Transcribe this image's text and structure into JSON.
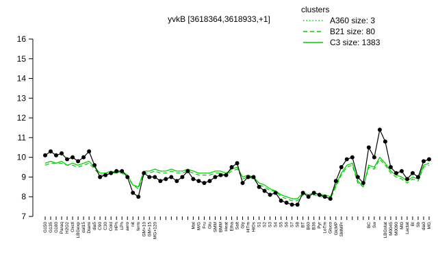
{
  "chart_data": {
    "type": "line",
    "title": "yvkB [3618364,3618933,+1]",
    "legend_title": "clusters",
    "legend_position": "top-right",
    "categories": [
      "G150",
      "G135",
      "G180",
      "Paraq",
      "H2O2",
      "Oxctl",
      "LBGexp",
      "dal15",
      "Diami",
      "dia5",
      "C90",
      "C30",
      "Cold",
      "HPh",
      "LPh",
      "aero",
      "nit",
      "ferm",
      "GM+10",
      "GM+15",
      "MG+120",
      null,
      null,
      null,
      null,
      null,
      null,
      "Mal",
      "M/G",
      "Fru",
      "Glu",
      "SMM",
      "BMM",
      "Heat",
      "Etha",
      "Salt",
      "Gly",
      "HiTm",
      "HiOs",
      "S1",
      "S2",
      "S3",
      "S4",
      "S5",
      "S6",
      "S7",
      "S8",
      "BT",
      "B60",
      "B36",
      "Pyr",
      "LoTm",
      "Gluco",
      "GlcMP",
      "SMMPr",
      null,
      null,
      null,
      null,
      "BC",
      "Sw",
      null,
      "LBGstat",
      "M0045",
      "M0090",
      "Mt0",
      "Lactat",
      "BI",
      "Sb",
      "dia0",
      "MG"
    ],
    "ylim": [
      7,
      16
    ],
    "yticks": [
      7,
      8,
      9,
      10,
      11,
      12,
      13,
      14,
      15,
      16
    ],
    "series": [
      {
        "name": "A360 size: 3",
        "color": "#00cc00",
        "dash": "dotted",
        "values": [
          9.7,
          9.8,
          9.7,
          9.8,
          9.6,
          9.7,
          9.6,
          9.7,
          9.8,
          9.5,
          9.2,
          9.2,
          9.3,
          9.2,
          9.3,
          9.1,
          8.6,
          8.5,
          9.3,
          9.3,
          9.4,
          9.3,
          9.3,
          9.4,
          9.3,
          9.3,
          9.4,
          9.3,
          9.2,
          9.2,
          9.2,
          9.3,
          9.3,
          9.2,
          9.4,
          9.5,
          9.0,
          9.1,
          9.0,
          8.7,
          8.6,
          8.4,
          8.3,
          8.1,
          8.0,
          7.9,
          7.9,
          8.2,
          8.1,
          8.2,
          8.1,
          8.1,
          8.0,
          8.6,
          9.2,
          9.6,
          9.7,
          8.8,
          8.5,
          9.6,
          9.5,
          10.0,
          9.7,
          9.3,
          9.1,
          9.0,
          8.8,
          9.0,
          8.9,
          9.6,
          9.7
        ]
      },
      {
        "name": "B21 size: 80",
        "color": "#00cc00",
        "dash": "dashed",
        "values": [
          9.6,
          9.7,
          9.7,
          9.7,
          9.6,
          9.6,
          9.5,
          9.6,
          9.7,
          9.4,
          9.1,
          9.1,
          9.2,
          9.2,
          9.2,
          9.0,
          8.6,
          8.4,
          9.2,
          9.2,
          9.3,
          9.2,
          9.2,
          9.3,
          9.2,
          9.2,
          9.3,
          9.2,
          9.1,
          9.1,
          9.1,
          9.2,
          9.2,
          9.1,
          9.3,
          9.4,
          8.9,
          9.0,
          8.9,
          8.6,
          8.5,
          8.3,
          8.3,
          8.0,
          7.9,
          7.8,
          7.8,
          8.1,
          8.0,
          8.1,
          8.0,
          8.0,
          7.9,
          8.5,
          9.1,
          9.5,
          9.6,
          8.7,
          8.5,
          9.5,
          9.4,
          9.9,
          9.6,
          9.2,
          9.0,
          8.9,
          8.7,
          8.9,
          8.8,
          9.5,
          9.6
        ]
      },
      {
        "name": "C3 size: 1383",
        "color": "#00cc00",
        "dash": "solid",
        "values": [
          9.7,
          9.8,
          9.7,
          9.8,
          9.6,
          9.7,
          9.6,
          9.7,
          9.8,
          9.5,
          9.2,
          9.2,
          9.3,
          9.2,
          9.3,
          9.1,
          8.6,
          8.5,
          9.3,
          9.3,
          9.4,
          9.3,
          9.3,
          9.4,
          9.3,
          9.3,
          9.4,
          9.3,
          9.2,
          9.2,
          9.2,
          9.3,
          9.3,
          9.2,
          9.4,
          9.5,
          9.0,
          9.1,
          9.0,
          8.7,
          8.6,
          8.4,
          8.3,
          8.1,
          8.0,
          7.9,
          7.9,
          8.2,
          8.1,
          8.2,
          8.1,
          8.1,
          8.0,
          8.6,
          9.2,
          9.6,
          9.7,
          8.8,
          8.5,
          9.6,
          9.5,
          10.0,
          9.7,
          9.3,
          9.1,
          9.0,
          8.8,
          9.0,
          8.9,
          9.6,
          9.7
        ]
      },
      {
        "color": "#000000",
        "dash": "solid",
        "markers": true,
        "values": [
          10.1,
          10.3,
          10.1,
          10.2,
          9.9,
          10.0,
          9.8,
          10.0,
          10.3,
          9.6,
          9.0,
          9.1,
          9.2,
          9.3,
          9.3,
          9.0,
          8.2,
          8.0,
          9.2,
          9.0,
          9.0,
          8.8,
          8.9,
          9.0,
          8.8,
          9.0,
          9.3,
          8.9,
          8.8,
          8.7,
          8.8,
          9.0,
          9.1,
          9.1,
          9.5,
          9.7,
          8.7,
          9.0,
          9.0,
          8.5,
          8.3,
          8.1,
          8.2,
          7.8,
          7.7,
          7.6,
          7.6,
          8.2,
          8.0,
          8.2,
          8.1,
          8.0,
          7.9,
          8.8,
          9.5,
          9.9,
          10.0,
          9.0,
          8.7,
          10.5,
          10.0,
          11.4,
          10.8,
          9.5,
          9.2,
          9.3,
          8.9,
          9.2,
          9.0,
          9.8,
          9.9
        ]
      }
    ]
  }
}
